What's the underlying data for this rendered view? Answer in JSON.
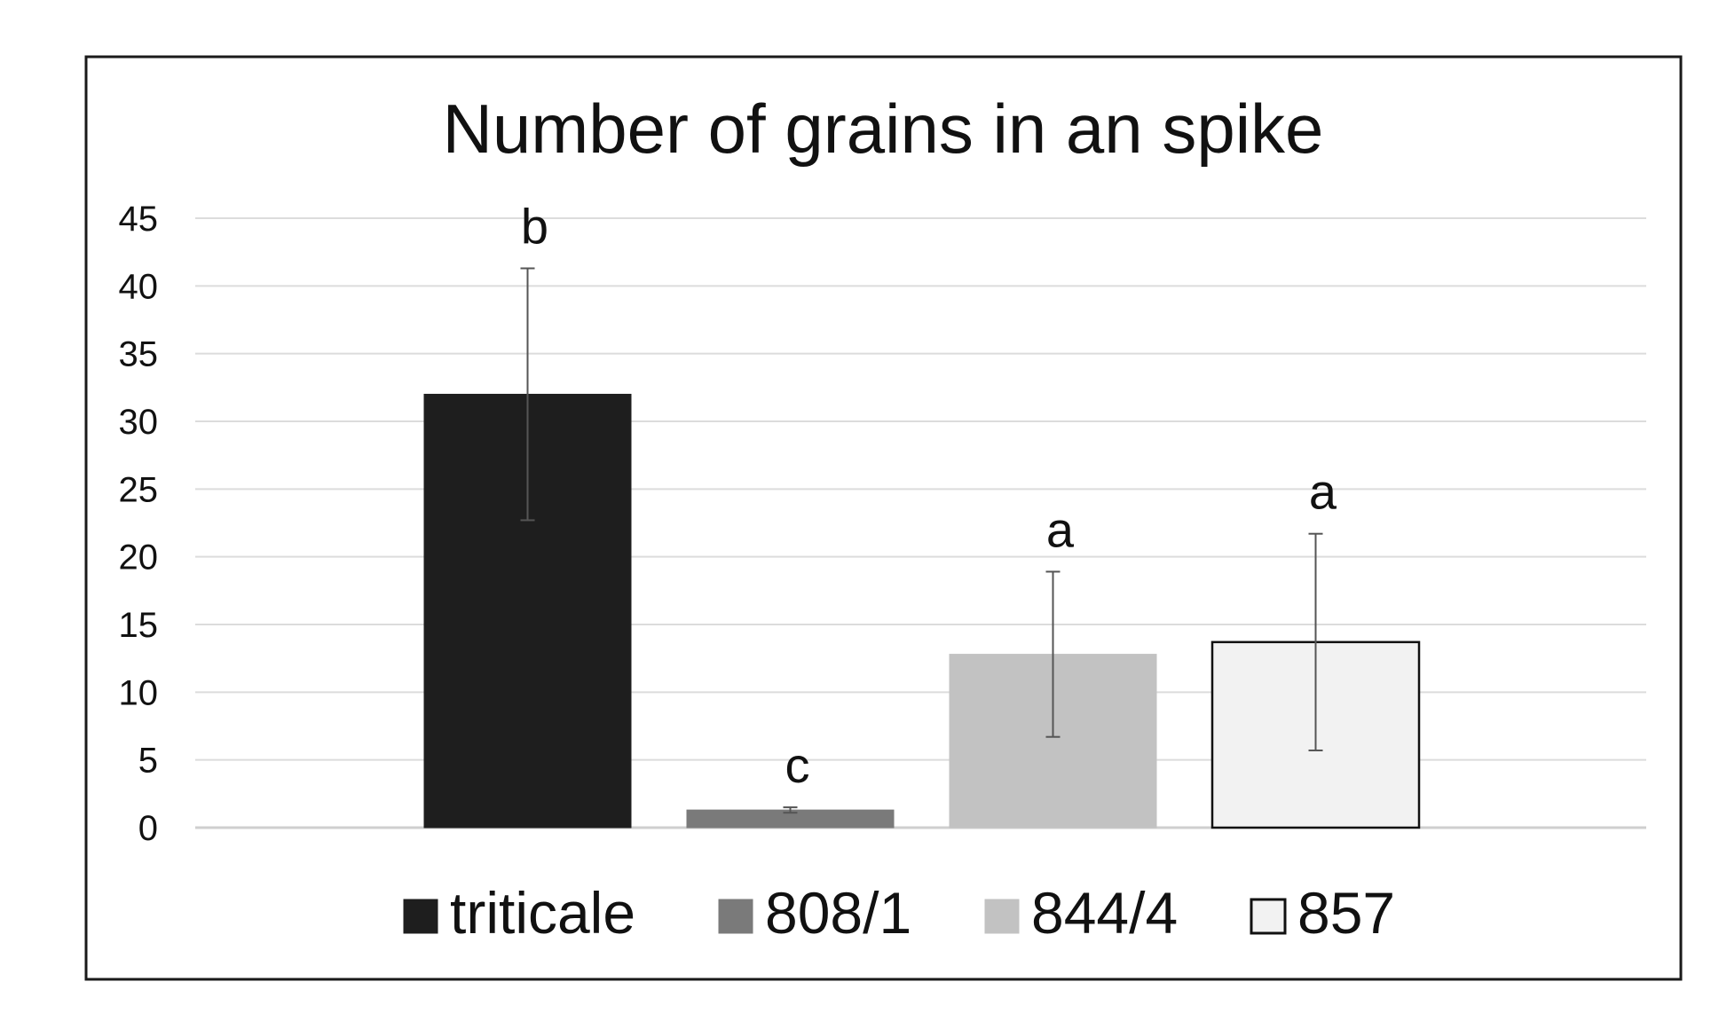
{
  "chart_data": {
    "type": "bar",
    "title": "Number of grains in an spike",
    "xlabel": "",
    "ylabel": "",
    "ylim": [
      0,
      45
    ],
    "yticks": [
      0,
      5,
      10,
      15,
      20,
      25,
      30,
      35,
      40,
      45
    ],
    "grid": true,
    "legend_position": "bottom",
    "series": [
      {
        "name": "triticale",
        "value": 32.0,
        "error": 9.3,
        "significance": "b",
        "color": "#1e1e1e"
      },
      {
        "name": "808/1",
        "value": 1.3,
        "error": 0.2,
        "significance": "c",
        "color": "#7a7a7a"
      },
      {
        "name": "844/4",
        "value": 12.8,
        "error": 6.1,
        "significance": "a",
        "color": "#c2c2c2"
      },
      {
        "name": "857",
        "value": 13.7,
        "error": 8.0,
        "significance": "a",
        "color": "#f2f2f2"
      }
    ]
  }
}
